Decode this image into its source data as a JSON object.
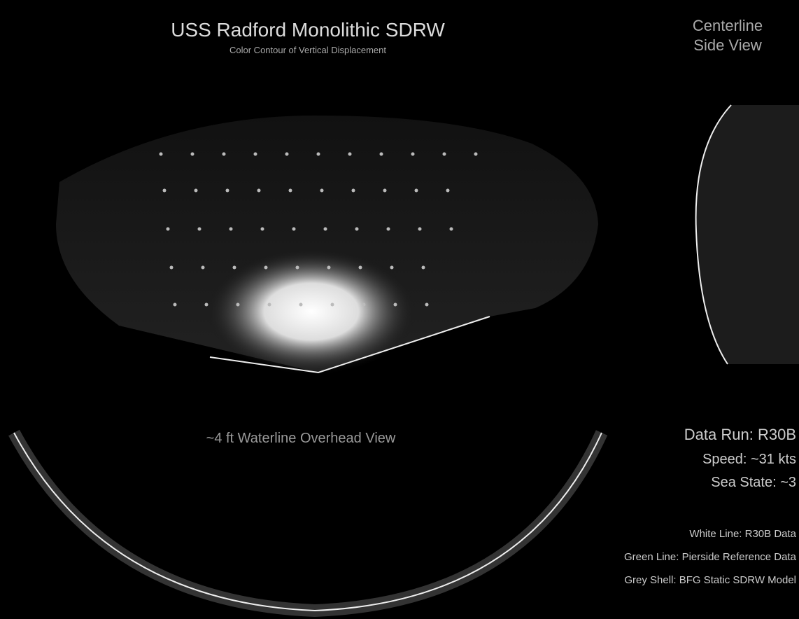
{
  "header": {
    "title": "USS Radford Monolithic SDRW",
    "subtitle": "Color Contour of Vertical Displacement"
  },
  "side_view": {
    "line1": "Centerline",
    "line2": "Side View"
  },
  "overhead_label": "~4 ft Waterline Overhead View",
  "run_info": {
    "data_run": "Data Run: R30B",
    "speed": "Speed: ~31 kts",
    "sea_state": "Sea State: ~3"
  },
  "legend": [
    "White Line: R30B Data",
    "Green Line: Pierside Reference Data",
    "Grey Shell: BFG Static SDRW Model"
  ]
}
